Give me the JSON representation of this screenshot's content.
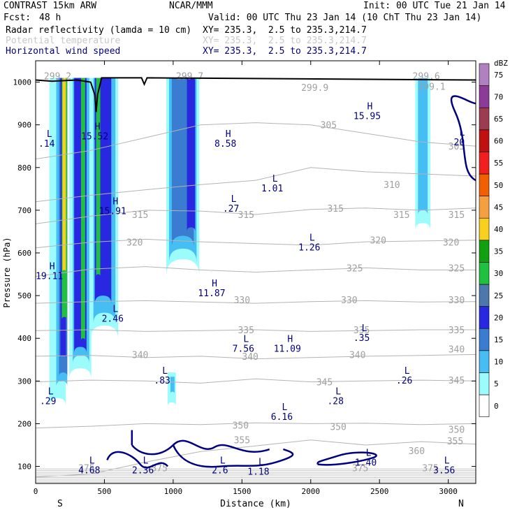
{
  "header": {
    "model": "CONTRAST 15km ARW",
    "org": "NCAR/MMM",
    "init": "Init: 00 UTC Tue 21 Jan 14",
    "fcst_label": "Fcst:",
    "fcst_value": "48 h",
    "valid": "Valid: 00 UTC Thu 23 Jan 14 (10 ChT Thu 23 Jan 14)",
    "fields": [
      {
        "name": "Radar reflectivity (lamda = 10 cm)",
        "xy": "XY= 235.3,  2.5 to 235.3,214.7",
        "color": "#000000"
      },
      {
        "name": "Potential temperature",
        "xy": "XY= 235.3,  2.5 to 235.3,214.7",
        "color": "#c8c8c8"
      },
      {
        "name": "Horizontal wind speed",
        "xy": "XY= 235.3,  2.5 to 235.3,214.7",
        "color": "#000080"
      }
    ]
  },
  "chart_data": {
    "type": "cross-section",
    "xlabel": "Distance (km)",
    "ylabel": "Pressure (hPa)",
    "xlim": [
      0,
      3200
    ],
    "ylim": [
      1050,
      60
    ],
    "x_ticks": [
      0,
      500,
      1000,
      1500,
      2000,
      2500,
      3000
    ],
    "y_ticks": [
      100,
      200,
      300,
      400,
      500,
      600,
      700,
      800,
      900,
      1000
    ],
    "end_labels": {
      "left": "S",
      "right": "N"
    },
    "colorbar": {
      "unit": "dBZ",
      "levels": [
        0,
        5,
        10,
        15,
        20,
        25,
        30,
        35,
        40,
        45,
        50,
        55,
        60,
        65,
        70,
        75
      ],
      "colors": [
        "#ffffff",
        "#9cfcfc",
        "#46bef4",
        "#3a7cd0",
        "#2828e0",
        "#4c78ac",
        "#20c040",
        "#10a010",
        "#f8d020",
        "#f4a040",
        "#f06000",
        "#f02020",
        "#c01010",
        "#9c3c50",
        "#8c3c98",
        "#b080c0"
      ]
    },
    "isentropes": [
      {
        "label": "355",
        "p": [
          75,
          82,
          110,
          135,
          148,
          162,
          150,
          158,
          152
        ]
      },
      {
        "label": "350",
        "p": [
          190,
          194,
          200,
          198,
          202,
          200,
          201,
          198,
          200
        ]
      },
      {
        "label": "345",
        "p": [
          298,
          302,
          300,
          295,
          305,
          298,
          300,
          302,
          300
        ]
      },
      {
        "label": "340",
        "p": [
          358,
          360,
          355,
          358,
          352,
          355,
          358,
          360,
          362
        ]
      },
      {
        "label": "335",
        "p": [
          418,
          420,
          416,
          418,
          420,
          416,
          418,
          420,
          420
        ]
      },
      {
        "label": "330",
        "p": [
          482,
          486,
          488,
          485,
          482,
          486,
          488,
          485,
          486
        ]
      },
      {
        "label": "325",
        "p": [
          545,
          562,
          568,
          560,
          555,
          560,
          565,
          560,
          560
        ]
      },
      {
        "label": "320",
        "p": [
          612,
          625,
          632,
          626,
          622,
          618,
          626,
          628,
          630
        ]
      },
      {
        "label": "315",
        "p": [
          668,
          686,
          700,
          698,
          690,
          702,
          705,
          700,
          705
        ]
      },
      {
        "label": "310",
        "p": [
          720,
          735,
          748,
          760,
          770,
          800,
          790,
          785,
          780
        ]
      },
      {
        "label": "305",
        "p": [
          820,
          840,
          870,
          900,
          905,
          900,
          880,
          860,
          850
        ]
      }
    ],
    "isentrope_labels": [
      {
        "text": "375",
        "x": 370,
        "p": 97
      },
      {
        "text": "375",
        "x": 900,
        "p": 97
      },
      {
        "text": "375",
        "x": 2360,
        "p": 97
      },
      {
        "text": "375",
        "x": 2870,
        "p": 97
      },
      {
        "text": "360",
        "x": 2770,
        "p": 137
      },
      {
        "text": "355",
        "x": 1500,
        "p": 162
      },
      {
        "text": "355",
        "x": 3050,
        "p": 160
      },
      {
        "text": "350",
        "x": 1490,
        "p": 197
      },
      {
        "text": "350",
        "x": 2200,
        "p": 193
      },
      {
        "text": "350",
        "x": 3060,
        "p": 187
      },
      {
        "text": "345",
        "x": 2100,
        "p": 298
      },
      {
        "text": "345",
        "x": 3060,
        "p": 302
      },
      {
        "text": "340",
        "x": 760,
        "p": 362
      },
      {
        "text": "340",
        "x": 1560,
        "p": 358
      },
      {
        "text": "340",
        "x": 2340,
        "p": 362
      },
      {
        "text": "340",
        "x": 3060,
        "p": 375
      },
      {
        "text": "335",
        "x": 1530,
        "p": 420
      },
      {
        "text": "335",
        "x": 2370,
        "p": 420
      },
      {
        "text": "335",
        "x": 3060,
        "p": 420
      },
      {
        "text": "330",
        "x": 1500,
        "p": 490
      },
      {
        "text": "330",
        "x": 2280,
        "p": 490
      },
      {
        "text": "330",
        "x": 3060,
        "p": 490
      },
      {
        "text": "325",
        "x": 2320,
        "p": 565
      },
      {
        "text": "325",
        "x": 3060,
        "p": 565
      },
      {
        "text": "320",
        "x": 720,
        "p": 625
      },
      {
        "text": "320",
        "x": 2490,
        "p": 630
      },
      {
        "text": "320",
        "x": 3020,
        "p": 625
      },
      {
        "text": "315",
        "x": 760,
        "p": 690
      },
      {
        "text": "315",
        "x": 1530,
        "p": 690
      },
      {
        "text": "315",
        "x": 2180,
        "p": 705
      },
      {
        "text": "315",
        "x": 2660,
        "p": 690
      },
      {
        "text": "315",
        "x": 3060,
        "p": 690
      },
      {
        "text": "310",
        "x": 2590,
        "p": 760
      },
      {
        "text": "305",
        "x": 2130,
        "p": 900
      },
      {
        "text": "305",
        "x": 3060,
        "p": 850
      },
      {
        "text": "299.2",
        "x": 160,
        "p": 1015
      },
      {
        "text": "299.7",
        "x": 1120,
        "p": 1015
      },
      {
        "text": "299.9",
        "x": 2030,
        "p": 988
      },
      {
        "text": "299.6",
        "x": 2840,
        "p": 1015
      },
      {
        "text": "299.1",
        "x": 2880,
        "p": 990
      }
    ],
    "wind_extrema": [
      {
        "type": "L",
        "value": "4.68",
        "x": 390,
        "p": 100
      },
      {
        "type": "L",
        "value": "2.36",
        "x": 780,
        "p": 100
      },
      {
        "type": "L",
        "value": "2.6",
        "x": 1340,
        "p": 100
      },
      {
        "type": "L",
        "value": "1.18",
        "x": 1620,
        "p": 97
      },
      {
        "type": "L",
        "value": "1.40",
        "x": 2400,
        "p": 118
      },
      {
        "type": "L",
        "value": "3.56",
        "x": 2970,
        "p": 100
      },
      {
        "type": "L",
        "value": ".29",
        "x": 90,
        "p": 262
      },
      {
        "type": "L",
        "value": "6.16",
        "x": 1790,
        "p": 225
      },
      {
        "type": "L",
        "value": ".28",
        "x": 2180,
        "p": 262
      },
      {
        "type": "L",
        "value": ".83",
        "x": 920,
        "p": 310
      },
      {
        "type": "L",
        "value": ".26",
        "x": 2680,
        "p": 310
      },
      {
        "type": "L",
        "value": "7.56",
        "x": 1510,
        "p": 385
      },
      {
        "type": "H",
        "value": "11.09",
        "x": 1830,
        "p": 385
      },
      {
        "type": "L",
        "value": ".35",
        "x": 2370,
        "p": 410
      },
      {
        "type": "L",
        "value": "2.46",
        "x": 560,
        "p": 455
      },
      {
        "type": "H",
        "value": "11.87",
        "x": 1280,
        "p": 515
      },
      {
        "type": "H",
        "value": "19.11",
        "x": 100,
        "p": 555
      },
      {
        "type": "L",
        "value": "1.26",
        "x": 1990,
        "p": 622
      },
      {
        "type": "H",
        "value": "15.91",
        "x": 560,
        "p": 707
      },
      {
        "type": "L",
        "value": ".27",
        "x": 1420,
        "p": 713
      },
      {
        "type": "L",
        "value": "1.01",
        "x": 1720,
        "p": 760
      },
      {
        "type": "L",
        "value": ".14",
        "x": 80,
        "p": 865
      },
      {
        "type": "H",
        "value": "15.52",
        "x": 430,
        "p": 882
      },
      {
        "type": "H",
        "value": "8.58",
        "x": 1380,
        "p": 865
      },
      {
        "type": "H",
        "value": "15.95",
        "x": 2410,
        "p": 930
      },
      {
        "type": "L",
        "value": "20",
        "x": 3080,
        "p": 868
      }
    ],
    "reflectivity_cells": [
      {
        "x": 100,
        "w": 120,
        "top": 260,
        "bot": 1010,
        "dbz": 5
      },
      {
        "x": 150,
        "w": 80,
        "top": 300,
        "bot": 1010,
        "dbz": 10
      },
      {
        "x": 170,
        "w": 60,
        "top": 320,
        "bot": 1010,
        "dbz": 15
      },
      {
        "x": 180,
        "w": 40,
        "top": 360,
        "bot": 1010,
        "dbz": 20
      },
      {
        "x": 190,
        "w": 40,
        "top": 450,
        "bot": 1010,
        "dbz": 30
      },
      {
        "x": 195,
        "w": 25,
        "top": 560,
        "bot": 1010,
        "dbz": 40
      },
      {
        "x": 245,
        "w": 160,
        "top": 330,
        "bot": 1010,
        "dbz": 5
      },
      {
        "x": 270,
        "w": 120,
        "top": 360,
        "bot": 1010,
        "dbz": 10
      },
      {
        "x": 280,
        "w": 90,
        "top": 380,
        "bot": 1010,
        "dbz": 20
      },
      {
        "x": 330,
        "w": 30,
        "top": 400,
        "bot": 1010,
        "dbz": 30
      },
      {
        "x": 400,
        "w": 200,
        "top": 430,
        "bot": 1010,
        "dbz": 5
      },
      {
        "x": 420,
        "w": 160,
        "top": 460,
        "bot": 1010,
        "dbz": 10
      },
      {
        "x": 430,
        "w": 120,
        "top": 500,
        "bot": 1010,
        "dbz": 20
      },
      {
        "x": 440,
        "w": 30,
        "top": 550,
        "bot": 1010,
        "dbz": 30
      },
      {
        "x": 960,
        "w": 60,
        "top": 250,
        "bot": 320,
        "dbz": 5
      },
      {
        "x": 980,
        "w": 30,
        "top": 275,
        "bot": 310,
        "dbz": 10
      },
      {
        "x": 950,
        "w": 240,
        "top": 585,
        "bot": 1010,
        "dbz": 5
      },
      {
        "x": 970,
        "w": 200,
        "top": 610,
        "bot": 1010,
        "dbz": 10
      },
      {
        "x": 990,
        "w": 160,
        "top": 640,
        "bot": 1010,
        "dbz": 15
      },
      {
        "x": 1100,
        "w": 60,
        "top": 660,
        "bot": 1010,
        "dbz": 20
      },
      {
        "x": 2760,
        "w": 110,
        "top": 670,
        "bot": 1010,
        "dbz": 5
      },
      {
        "x": 2780,
        "w": 70,
        "top": 700,
        "bot": 1010,
        "dbz": 10
      }
    ],
    "terrain": [
      [
        0,
        1005
      ],
      [
        120,
        1002
      ],
      [
        300,
        1005
      ],
      [
        400,
        1000
      ],
      [
        430,
        970
      ],
      [
        440,
        930
      ],
      [
        450,
        970
      ],
      [
        480,
        1010
      ],
      [
        770,
        1010
      ],
      [
        790,
        995
      ],
      [
        810,
        1010
      ],
      [
        3200,
        1005
      ]
    ]
  }
}
